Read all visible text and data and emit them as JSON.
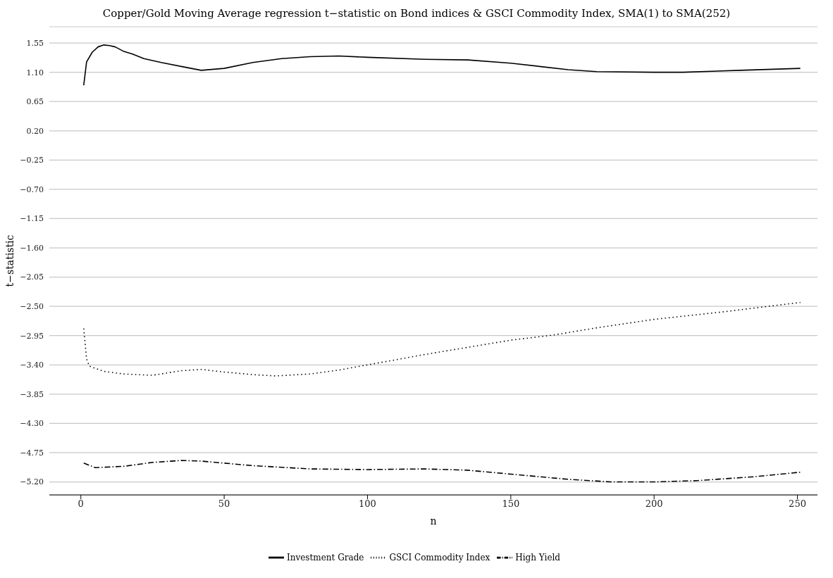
{
  "chart_data": {
    "type": "line",
    "title": "Copper/Gold Moving Average regression t−statistic on Bond indices & GSCI Commodity Index, SMA(1) to SMA(252)",
    "xlabel": "n",
    "ylabel": "t−statistic",
    "xlim": [
      -11,
      257
    ],
    "xticks": [
      0,
      50,
      100,
      150,
      200,
      250
    ],
    "ylim": [
      -5.4,
      1.8
    ],
    "yticks": [
      {
        "value": -5.2,
        "label": "−5.20"
      },
      {
        "value": -4.75,
        "label": "−4.75"
      },
      {
        "value": -4.3,
        "label": "−4.30"
      },
      {
        "value": -3.85,
        "label": "−3.85"
      },
      {
        "value": -3.4,
        "label": "−3.40"
      },
      {
        "value": -2.95,
        "label": "−2.95"
      },
      {
        "value": -2.5,
        "label": "−2.50"
      },
      {
        "value": -2.05,
        "label": "−2.05"
      },
      {
        "value": -1.6,
        "label": "−1.60"
      },
      {
        "value": -1.15,
        "label": "−1.15"
      },
      {
        "value": -0.7,
        "label": "−0.70"
      },
      {
        "value": -0.25,
        "label": "−0.25"
      },
      {
        "value": 0.2,
        "label": "0.20"
      },
      {
        "value": 0.65,
        "label": "0.65"
      },
      {
        "value": 1.1,
        "label": "1.10"
      },
      1.55
    ],
    "grid": "y",
    "legend": "bottom",
    "series": [
      {
        "name": "Investment Grade",
        "color": "#000000",
        "line_style": "solid",
        "x": [
          1,
          2,
          4,
          6,
          8,
          10,
          12,
          15,
          18,
          22,
          28,
          35,
          42,
          50,
          60,
          70,
          80,
          90,
          100,
          120,
          135,
          150,
          160,
          170,
          180,
          200,
          210,
          230,
          251
        ],
        "values": [
          0.9,
          1.26,
          1.41,
          1.49,
          1.52,
          1.51,
          1.49,
          1.42,
          1.38,
          1.31,
          1.25,
          1.19,
          1.13,
          1.16,
          1.25,
          1.31,
          1.34,
          1.35,
          1.33,
          1.3,
          1.29,
          1.24,
          1.19,
          1.14,
          1.11,
          1.1,
          1.1,
          1.13,
          1.16
        ]
      },
      {
        "name": "GSCI Commodity Index",
        "color": "#000000",
        "line_style": "dotted",
        "x": [
          1,
          2,
          3,
          8,
          15,
          25,
          35,
          42,
          50,
          60,
          68,
          80,
          90,
          100,
          120,
          150,
          165,
          180,
          200,
          225,
          251
        ],
        "values": [
          -2.84,
          -3.31,
          -3.42,
          -3.5,
          -3.54,
          -3.56,
          -3.49,
          -3.47,
          -3.51,
          -3.55,
          -3.57,
          -3.54,
          -3.48,
          -3.4,
          -3.24,
          -3.02,
          -2.94,
          -2.83,
          -2.7,
          -2.58,
          -2.44
        ]
      },
      {
        "name": "High Yield",
        "color": "#000000",
        "line_style": "dashdot",
        "x": [
          1,
          5,
          15,
          25,
          35,
          42,
          60,
          80,
          100,
          120,
          135,
          150,
          170,
          185,
          200,
          215,
          235,
          251
        ],
        "values": [
          -4.91,
          -4.98,
          -4.96,
          -4.9,
          -4.87,
          -4.88,
          -4.95,
          -5.0,
          -5.01,
          -5.0,
          -5.02,
          -5.08,
          -5.16,
          -5.2,
          -5.2,
          -5.18,
          -5.12,
          -5.05
        ]
      }
    ]
  }
}
